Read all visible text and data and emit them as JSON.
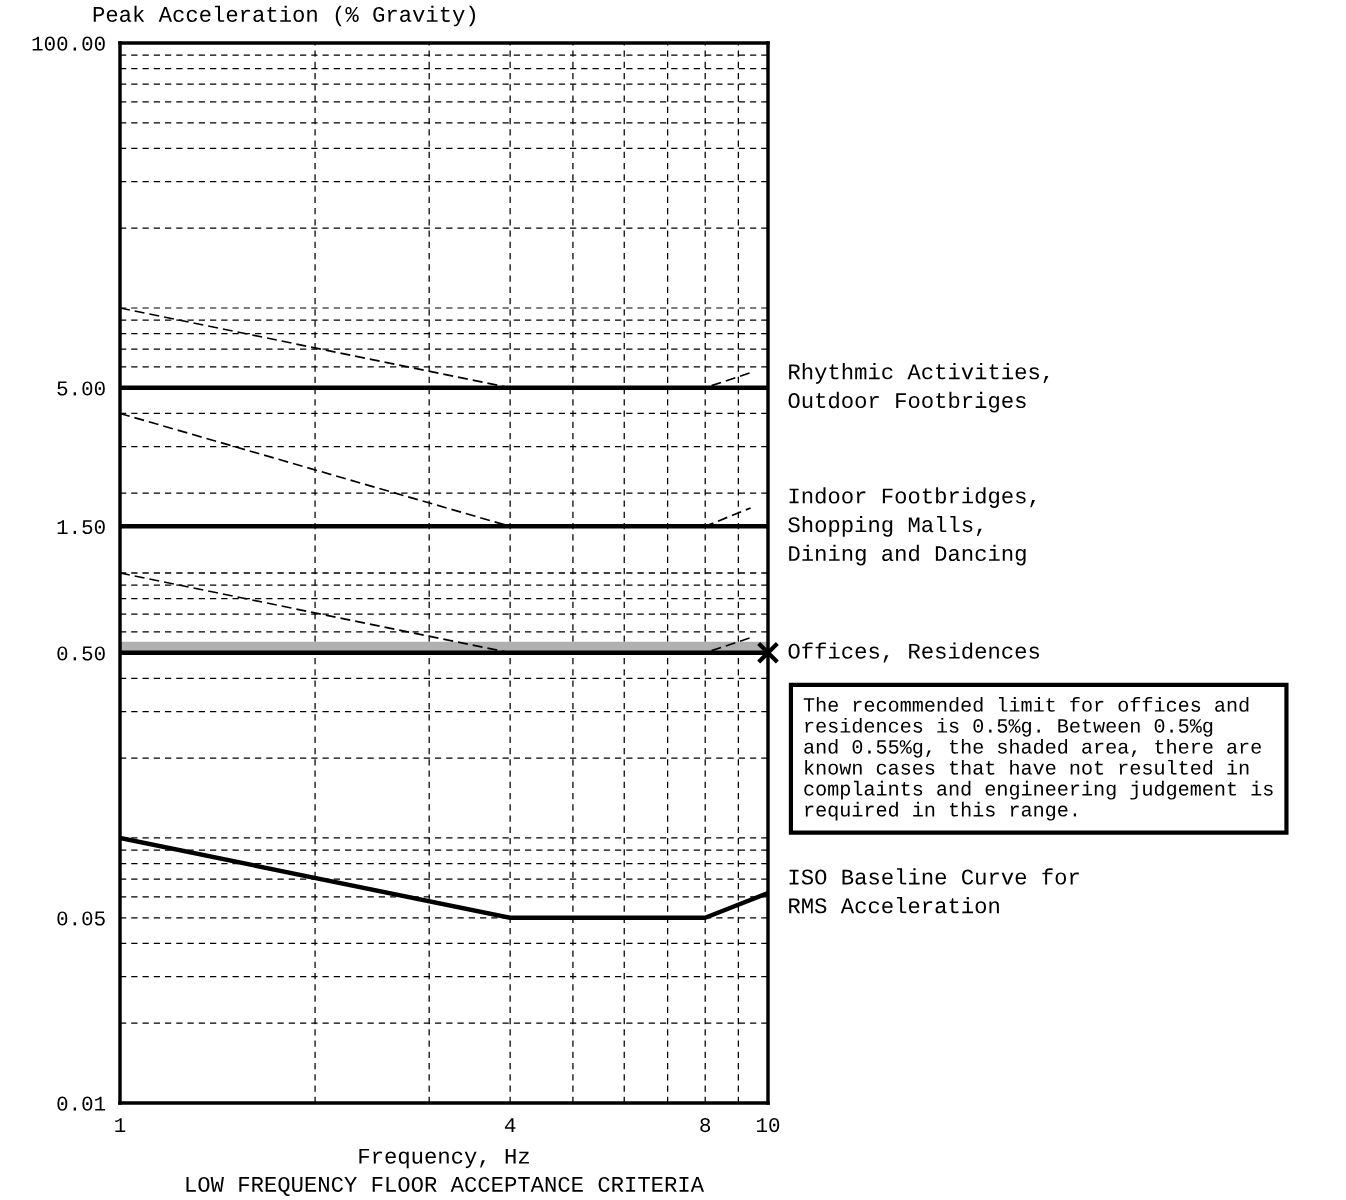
{
  "chart_data": {
    "type": "line",
    "title": "LOW FREQUENCY FLOOR ACCEPTANCE CRITERIA",
    "xlabel": "Frequency, Hz",
    "ylabel": "Peak Acceleration (% Gravity)",
    "log": "xy",
    "grid": true,
    "xlim": [
      1,
      10
    ],
    "xticks": [
      1,
      {
        "value": 2,
        "label": null
      },
      {
        "value": 3,
        "label": null
      },
      4,
      {
        "value": 5,
        "label": null
      },
      {
        "value": 6,
        "label": null
      },
      {
        "value": 7,
        "label": null
      },
      8,
      {
        "value": 9,
        "label": null
      },
      10
    ],
    "ylim": [
      0.01,
      100
    ],
    "yticks": [
      0.01,
      {
        "value": 0.02,
        "label": null
      },
      {
        "value": 0.03,
        "label": null
      },
      {
        "value": 0.04,
        "label": null
      },
      0.05,
      {
        "value": 0.06,
        "label": null
      },
      {
        "value": 0.07,
        "label": null
      },
      {
        "value": 0.08,
        "label": null
      },
      {
        "value": 0.09,
        "label": null
      },
      {
        "value": 0.1,
        "label": null
      },
      {
        "value": 0.2,
        "label": null
      },
      {
        "value": 0.3,
        "label": null
      },
      {
        "value": 0.4,
        "label": null
      },
      {
        "value": 0.5,
        "label": "0.50"
      },
      {
        "value": 0.6,
        "label": null
      },
      {
        "value": 0.7,
        "label": null
      },
      {
        "value": 0.8,
        "label": null
      },
      {
        "value": 0.9,
        "label": null
      },
      {
        "value": 1,
        "label": null
      },
      {
        "value": 1.5,
        "label": "1.50"
      },
      {
        "value": 2,
        "label": null
      },
      {
        "value": 3,
        "label": null
      },
      {
        "value": 4,
        "label": null
      },
      {
        "value": 5,
        "label": "5.00"
      },
      {
        "value": 6,
        "label": null
      },
      {
        "value": 7,
        "label": null
      },
      {
        "value": 8,
        "label": null
      },
      {
        "value": 9,
        "label": null
      },
      {
        "value": 10,
        "label": null
      },
      {
        "value": 20,
        "label": null
      },
      {
        "value": 30,
        "label": null
      },
      {
        "value": 40,
        "label": null
      },
      {
        "value": 50,
        "label": null
      },
      {
        "value": 60,
        "label": null
      },
      {
        "value": 70,
        "label": null
      },
      {
        "value": 80,
        "label": null
      },
      {
        "value": 90,
        "label": null
      },
      {
        "value": 100,
        "label": "100.00"
      }
    ],
    "series": [
      {
        "name": "Rhythmic Activities,\nOutdoor Footbriges",
        "x": [
          1,
          10
        ],
        "values": [
          5,
          5
        ],
        "color": "#000000",
        "line_style": "solid"
      },
      {
        "name": "Indoor Footbridges,\nShopping Malls,\nDining and Dancing",
        "x": [
          1,
          10
        ],
        "values": [
          1.5,
          1.5
        ],
        "color": "#000000",
        "line_style": "solid"
      },
      {
        "name": "Offices, Residences",
        "x": [
          1,
          10
        ],
        "values": [
          0.5,
          0.5
        ],
        "color": "#000000",
        "line_style": "solid"
      },
      {
        "type": "line",
        "x": [
          1,
          4,
          8,
          9.4
        ],
        "values": [
          10,
          5,
          5,
          5.7
        ],
        "color": "#000000",
        "line_style": "dashed"
      },
      {
        "type": "line",
        "x": [
          1,
          4,
          8,
          9.4
        ],
        "values": [
          4,
          1.5,
          1.5,
          1.76
        ],
        "color": "#000000",
        "line_style": "dashed"
      },
      {
        "type": "line",
        "x": [
          1,
          4,
          8,
          9.4
        ],
        "values": [
          1,
          0.5,
          0.5,
          0.57
        ],
        "color": "#000000",
        "line_style": "dashed"
      },
      {
        "type": "line",
        "name": "ISO Baseline Curve for\nRMS Acceleration",
        "x": [
          1,
          4,
          8,
          10
        ],
        "values": [
          0.1,
          0.05,
          0.05,
          0.062
        ],
        "color": "#000000",
        "line_style": "solid"
      },
      {
        "type": "scatter",
        "x": [
          10
        ],
        "values": [
          0.5
        ],
        "color": "#000000",
        "marker": "cross"
      }
    ],
    "bands": [
      {
        "axis": "y",
        "from": 0.5,
        "to": 0.55,
        "color": "#b0b0b0"
      }
    ],
    "annotations": [
      "The recommended limit for offices and\nresidences is 0.5%g. Between 0.5%g\nand 0.55%g, the shaded area, there are\nknown cases that have not resulted in\ncomplaints and engineering judgement is\nrequired in this range."
    ]
  }
}
